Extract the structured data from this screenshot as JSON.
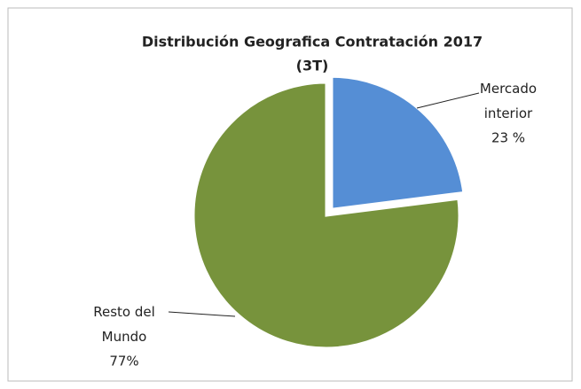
{
  "chart_data": {
    "type": "pie",
    "title": "Distribución Geografica Contratación 2017",
    "subtitle": "(3T)",
    "categories": [
      "Mercado interior",
      "Resto del Mundo"
    ],
    "values": [
      23,
      77
    ],
    "value_labels": [
      "23 %",
      "77%"
    ],
    "colors": [
      "#558ed5",
      "#77933c"
    ]
  }
}
